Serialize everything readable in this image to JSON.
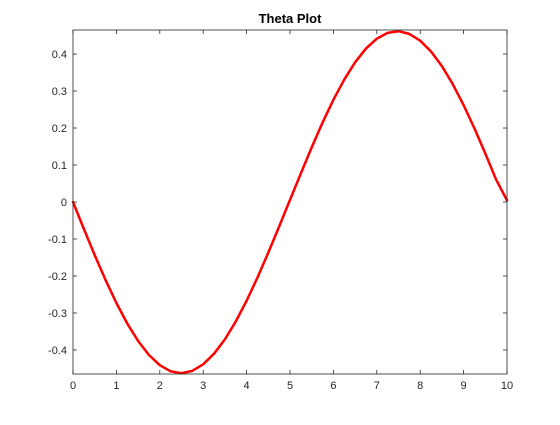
{
  "chart_data": {
    "type": "line",
    "title": "Theta Plot",
    "xlabel": "",
    "ylabel": "",
    "xlim": [
      0,
      10
    ],
    "ylim": [
      -0.465,
      0.465
    ],
    "xticks": [
      0,
      1,
      2,
      3,
      4,
      5,
      6,
      7,
      8,
      9,
      10
    ],
    "xtick_labels": [
      "0",
      "1",
      "2",
      "3",
      "4",
      "5",
      "6",
      "7",
      "8",
      "9",
      "10"
    ],
    "yticks": [
      -0.4,
      -0.3,
      -0.2,
      -0.1,
      0,
      0.1,
      0.2,
      0.3,
      0.4
    ],
    "ytick_labels": [
      "-0.4",
      "-0.3",
      "-0.2",
      "-0.1",
      "0",
      "0.1",
      "0.2",
      "0.3",
      "0.4"
    ],
    "grid": false,
    "legend": "none",
    "line_color": "#ff0000",
    "axis_color": "#262626",
    "series": [
      {
        "x": [
          0,
          0.25,
          0.5,
          0.75,
          1,
          1.25,
          1.5,
          1.75,
          2,
          2.25,
          2.5,
          2.75,
          3,
          3.25,
          3.5,
          3.75,
          4,
          4.25,
          4.5,
          4.75,
          5,
          5.25,
          5.5,
          5.75,
          6,
          6.25,
          6.5,
          6.75,
          7,
          7.25,
          7.5,
          7.75,
          8,
          8.25,
          8.5,
          8.75,
          9,
          9.25,
          9.5,
          9.75,
          10
        ],
        "values": [
          0,
          -0.0727,
          -0.1436,
          -0.211,
          -0.2731,
          -0.3285,
          -0.3758,
          -0.4137,
          -0.4412,
          -0.4577,
          -0.4629,
          -0.4565,
          -0.4388,
          -0.4101,
          -0.3713,
          -0.3231,
          -0.267,
          -0.2044,
          -0.1368,
          -0.0662,
          0.0057,
          0.0772,
          0.1477,
          0.2147,
          0.2762,
          0.331,
          0.3776,
          0.4148,
          0.4415,
          0.4572,
          0.4617,
          0.4545,
          0.4361,
          0.4068,
          0.3674,
          0.3186,
          0.2619,
          0.199,
          0.1311,
          0.0603,
          0.0044
        ]
      }
    ]
  }
}
